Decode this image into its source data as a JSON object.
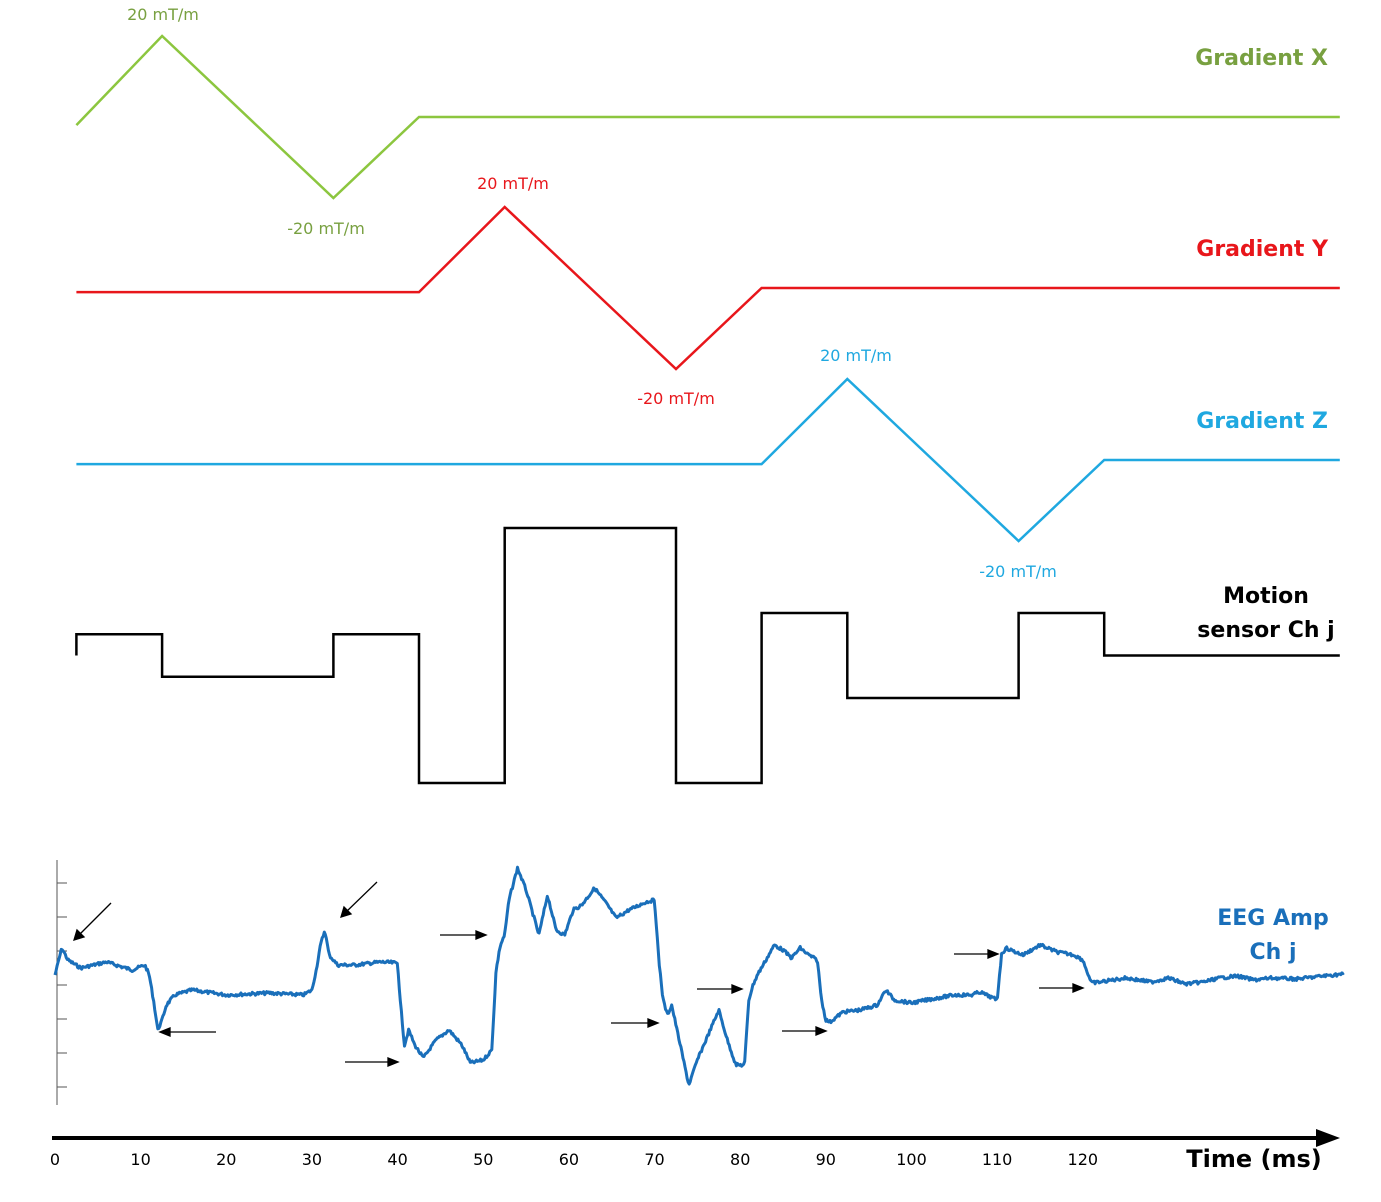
{
  "colors": {
    "gradient_x": "#8cc63f",
    "gradient_x_text": "#78a040",
    "gradient_y": "#e8161b",
    "gradient_z": "#1fa8e0",
    "motion": "#000000",
    "eeg": "#1a6fba"
  },
  "gradient_x": {
    "title": "Gradient X",
    "peak_label": "20 mT/m",
    "trough_label": "-20 mT/m",
    "waveform_ms": [
      [
        2.5,
        -0.1
      ],
      [
        12.5,
        1
      ],
      [
        32.5,
        -1
      ],
      [
        42.5,
        0
      ],
      [
        150,
        0
      ]
    ]
  },
  "gradient_y": {
    "title": "Gradient Y",
    "peak_label": "20 mT/m",
    "trough_label": "-20 mT/m",
    "waveform_ms": [
      [
        2.5,
        -0.05
      ],
      [
        42.5,
        -0.05
      ],
      [
        52.5,
        1
      ],
      [
        72.5,
        -1
      ],
      [
        82.5,
        0
      ],
      [
        150,
        0
      ]
    ]
  },
  "gradient_z": {
    "title": "Gradient Z",
    "peak_label": "20 mT/m",
    "trough_label": "-20 mT/m",
    "waveform_ms": [
      [
        2.5,
        -0.05
      ],
      [
        82.5,
        -0.05
      ],
      [
        92.5,
        1
      ],
      [
        112.5,
        -1
      ],
      [
        122.5,
        0
      ],
      [
        150,
        0
      ]
    ]
  },
  "motion_sensor": {
    "title_line1": "Motion",
    "title_line2": "sensor Ch j",
    "steps_ms": [
      [
        2.5,
        0
      ],
      [
        2.5,
        0.5
      ],
      [
        12.5,
        0.5
      ],
      [
        12.5,
        -0.5
      ],
      [
        32.5,
        -0.5
      ],
      [
        32.5,
        0.5
      ],
      [
        42.5,
        0.5
      ],
      [
        42.5,
        -3
      ],
      [
        52.5,
        -3
      ],
      [
        52.5,
        3
      ],
      [
        72.5,
        3
      ],
      [
        72.5,
        -3
      ],
      [
        82.5,
        -3
      ],
      [
        82.5,
        1
      ],
      [
        92.5,
        1
      ],
      [
        92.5,
        -1
      ],
      [
        112.5,
        -1
      ],
      [
        112.5,
        1
      ],
      [
        122.5,
        1
      ],
      [
        122.5,
        0
      ],
      [
        150,
        0
      ]
    ]
  },
  "eeg": {
    "title_line1": "EEG Amp",
    "title_line2": "Ch j",
    "artifact_arrows_ms": [
      3,
      12,
      32,
      41,
      51,
      71,
      81,
      91,
      111,
      121
    ]
  },
  "time_axis": {
    "title": "Time (ms)",
    "ticks": [
      "0",
      "10",
      "20",
      "30",
      "40",
      "50",
      "60",
      "70",
      "80",
      "90",
      "100",
      "110",
      "120"
    ]
  }
}
